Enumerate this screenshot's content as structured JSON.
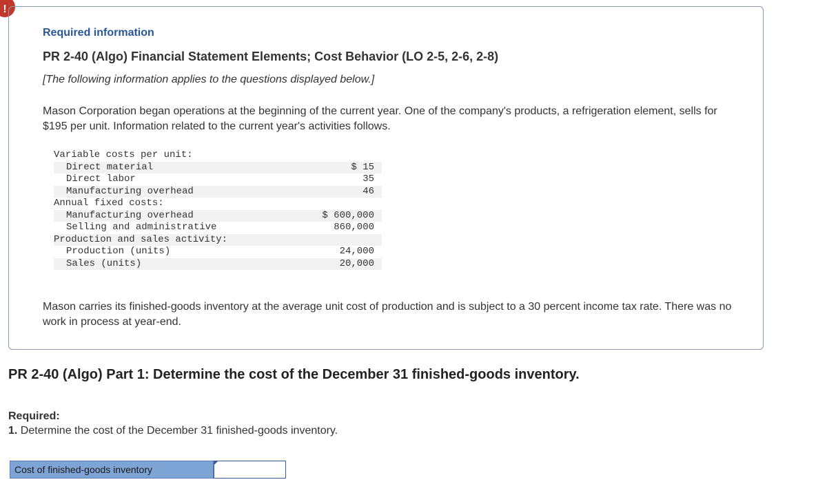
{
  "alert": {
    "glyph": "!"
  },
  "header": {
    "required_info": "Required information",
    "problem_title": "PR 2-40 (Algo) Financial Statement Elements; Cost Behavior (LO 2-5, 2-6, 2-8)",
    "note": "[The following information applies to the questions displayed below.]"
  },
  "intro": "Mason Corporation began operations at the beginning of the current year. One of the company's products, a refrigeration element, sells for $195 per unit. Information related to the current year's activities follows.",
  "table": {
    "rows": [
      {
        "label": "Variable costs per unit:",
        "value": ""
      },
      {
        "label": "Direct material",
        "value": "$ 15"
      },
      {
        "label": "Direct labor",
        "value": "35"
      },
      {
        "label": "Manufacturing overhead",
        "value": "46"
      },
      {
        "label": "Annual fixed costs:",
        "value": ""
      },
      {
        "label": "Manufacturing overhead",
        "value": "$ 600,000"
      },
      {
        "label": "Selling and administrative",
        "value": "860,000"
      },
      {
        "label": "Production and sales activity:",
        "value": ""
      },
      {
        "label": "Production (units)",
        "value": "24,000"
      },
      {
        "label": "Sales (units)",
        "value": "20,000"
      }
    ]
  },
  "outro": "Mason carries its finished-goods inventory at the average unit cost of production and is subject to a 30 percent income tax rate. There was no work in process at year-end.",
  "part": {
    "title": "PR 2-40 (Algo) Part 1: Determine the cost of the December 31 finished-goods inventory.",
    "required_label": "Required:",
    "required_num": "1.",
    "required_text": " Determine the cost of the December 31 finished-goods inventory."
  },
  "answer": {
    "label": "Cost of finished-goods inventory",
    "value": ""
  }
}
